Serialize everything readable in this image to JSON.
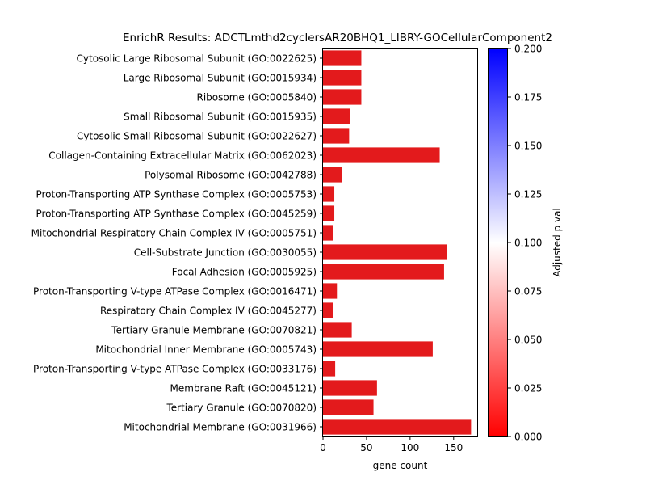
{
  "chart_data": {
    "type": "bar",
    "orientation": "horizontal",
    "title": "EnrichR Results: ADCTLmthd2cyclersAR20BHQ1_LIBRY-GOCellularComponent2",
    "xlabel": "gene count",
    "ylabel": "",
    "xlim": [
      0,
      178
    ],
    "xticks": [
      0,
      50,
      100,
      150
    ],
    "grid": false,
    "categories": [
      "Cytosolic Large Ribosomal Subunit (GO:0022625)",
      "Large Ribosomal Subunit (GO:0015934)",
      "Ribosome (GO:0005840)",
      "Small Ribosomal Subunit (GO:0015935)",
      "Cytosolic Small Ribosomal Subunit (GO:0022627)",
      "Collagen-Containing Extracellular Matrix (GO:0062023)",
      "Polysomal Ribosome (GO:0042788)",
      "Proton-Transporting ATP Synthase Complex (GO:0005753)",
      "Proton-Transporting ATP Synthase Complex (GO:0045259)",
      "Mitochondrial Respiratory Chain Complex IV (GO:0005751)",
      "Cell-Substrate Junction (GO:0030055)",
      "Focal Adhesion (GO:0005925)",
      "Proton-Transporting V-type ATPase Complex (GO:0016471)",
      "Respiratory Chain Complex IV (GO:0045277)",
      "Tertiary Granule Membrane (GO:0070821)",
      "Mitochondrial Inner Membrane (GO:0005743)",
      "Proton-Transporting V-type ATPase Complex (GO:0033176)",
      "Membrane Raft (GO:0045121)",
      "Tertiary Granule (GO:0070820)",
      "Mitochondrial Membrane (GO:0031966)"
    ],
    "values": [
      44,
      44,
      44,
      31,
      30,
      134,
      22,
      13,
      13,
      12,
      142,
      139,
      16,
      12,
      33,
      126,
      14,
      62,
      58,
      170
    ],
    "bar_color": "#e31a1c",
    "colorbar": {
      "label": "Adjusted p val",
      "range": [
        0.0,
        0.2
      ],
      "ticks": [
        "0.000",
        "0.025",
        "0.050",
        "0.075",
        "0.100",
        "0.125",
        "0.150",
        "0.175",
        "0.200"
      ],
      "colormap": [
        "#ff0000",
        "#ffffff",
        "#0000ff"
      ]
    }
  }
}
